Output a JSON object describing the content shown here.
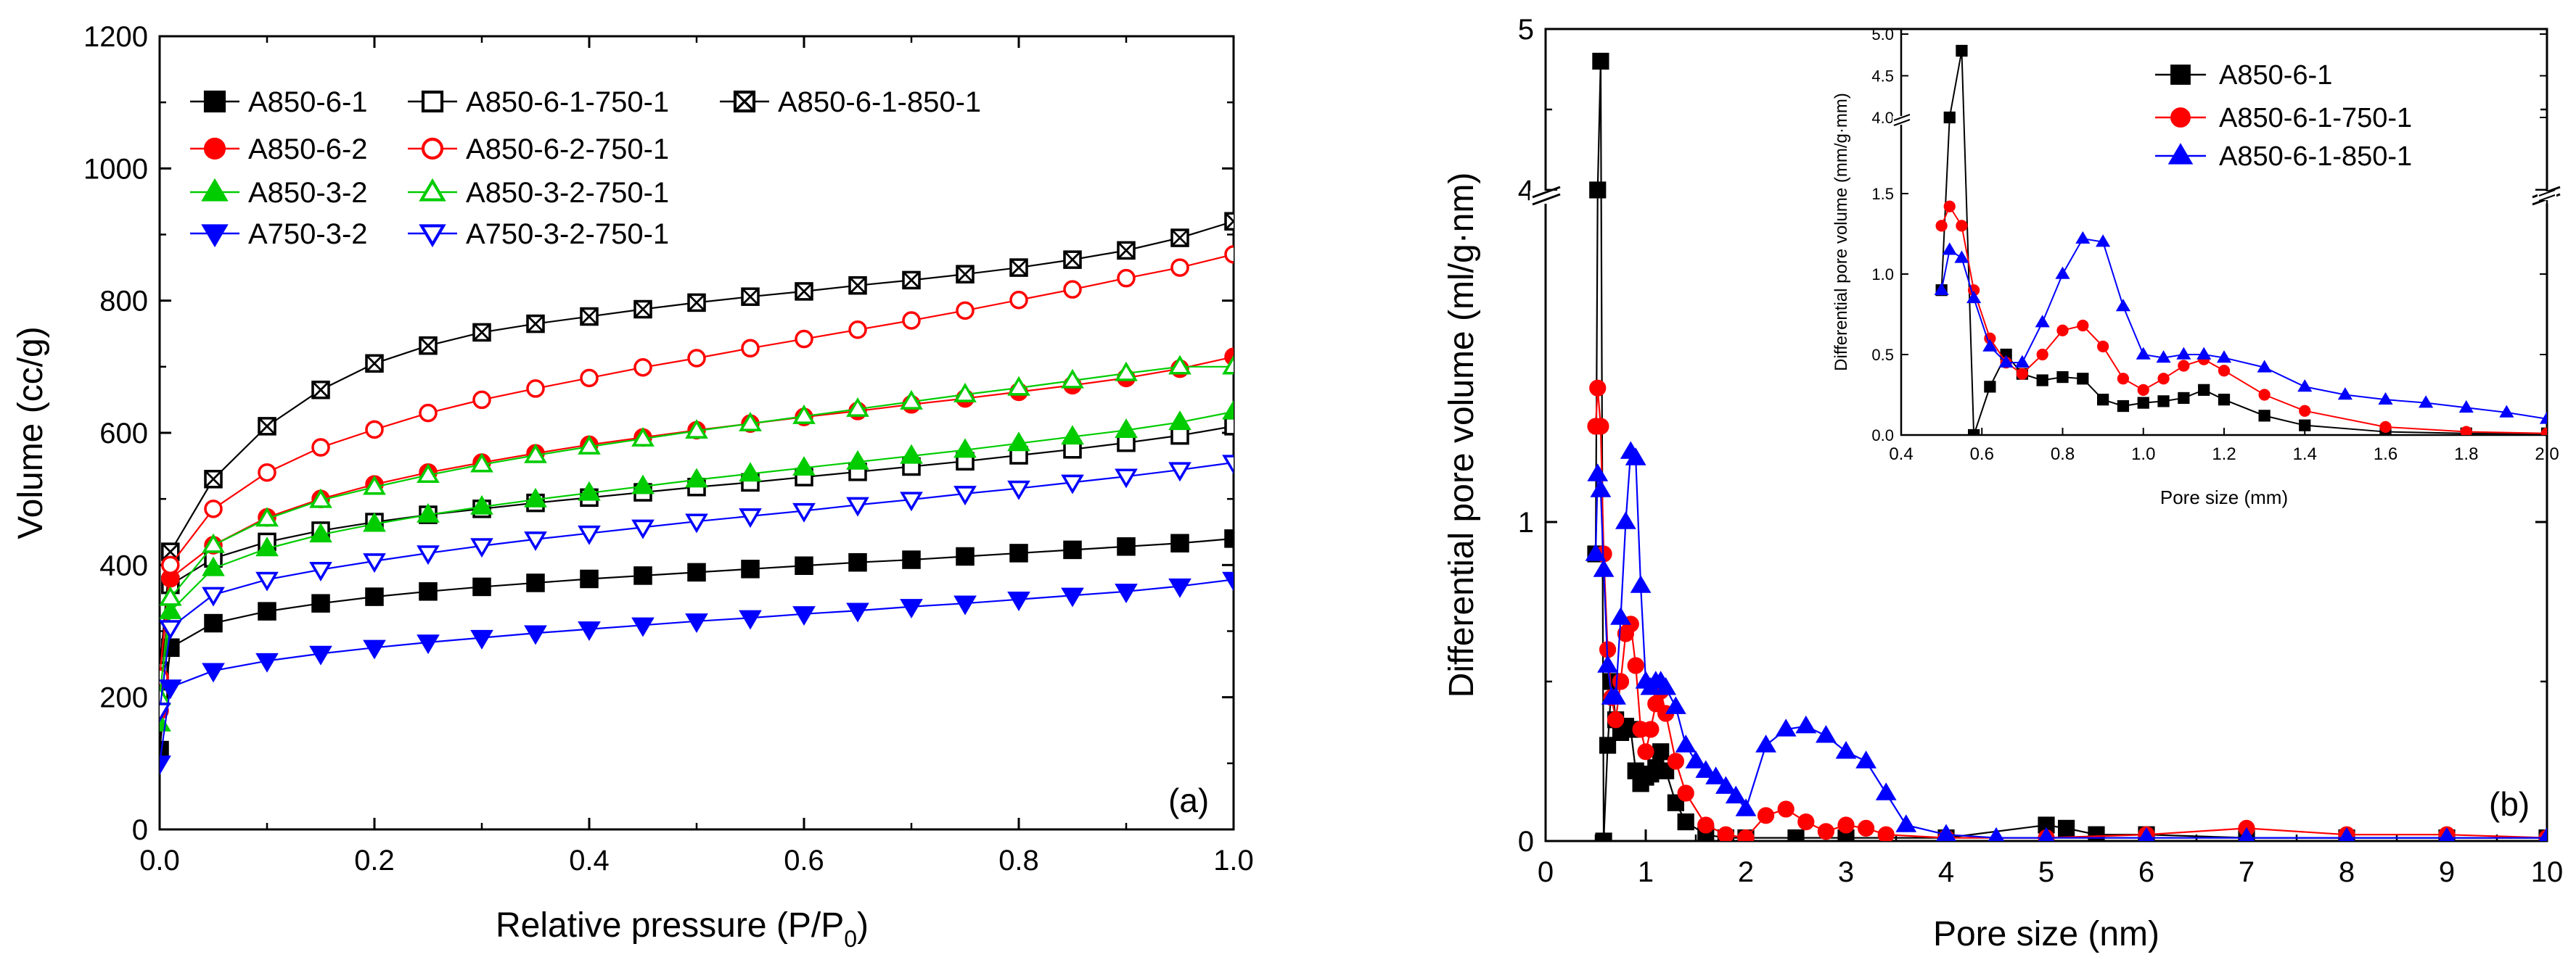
{
  "chart_data": [
    {
      "type": "line",
      "panel_label": "(a)",
      "xlabel": "Relative pressure (P/P",
      "xlabel_sub": "0",
      "xlabel_end": ")",
      "ylabel": "Volume (cc/g)",
      "xlim": [
        0,
        1.0
      ],
      "ylim": [
        0,
        1200
      ],
      "xticks": [
        0.0,
        0.2,
        0.4,
        0.6,
        0.8,
        1.0
      ],
      "xtick_labels": [
        "0.0",
        "0.2",
        "0.4",
        "0.6",
        "0.8",
        "1.0"
      ],
      "yticks": [
        0,
        200,
        400,
        600,
        800,
        1000,
        1200
      ],
      "ytick_labels": [
        "0",
        "200",
        "400",
        "600",
        "800",
        "1000",
        "1200"
      ],
      "legend_position": "top-left",
      "x": [
        0.0,
        0.01,
        0.05,
        0.1,
        0.15,
        0.2,
        0.25,
        0.3,
        0.35,
        0.4,
        0.45,
        0.5,
        0.55,
        0.6,
        0.65,
        0.7,
        0.75,
        0.8,
        0.85,
        0.9,
        0.95,
        1.0
      ],
      "series": [
        {
          "name": "A850-6-1",
          "color": "#000000",
          "marker": "square",
          "fill": "solid",
          "values": [
            120,
            275,
            312,
            330,
            342,
            352,
            360,
            367,
            373,
            379,
            384,
            389,
            394,
            399,
            404,
            408,
            413,
            418,
            423,
            428,
            433,
            440
          ]
        },
        {
          "name": "A850-6-1-750-1",
          "color": "#000000",
          "marker": "square",
          "fill": "open",
          "values": [
            200,
            370,
            410,
            435,
            452,
            465,
            476,
            485,
            494,
            502,
            510,
            518,
            525,
            533,
            541,
            549,
            557,
            566,
            575,
            585,
            596,
            610
          ]
        },
        {
          "name": "A850-6-1-850-1",
          "color": "#000000",
          "marker": "square",
          "fill": "cross",
          "values": [
            240,
            420,
            530,
            610,
            665,
            705,
            732,
            752,
            765,
            776,
            787,
            797,
            806,
            814,
            823,
            831,
            840,
            850,
            862,
            876,
            895,
            920
          ]
        },
        {
          "name": "A850-6-2",
          "color": "#ff0000",
          "marker": "circle",
          "fill": "solid",
          "values": [
            180,
            380,
            430,
            472,
            500,
            522,
            540,
            555,
            569,
            582,
            593,
            604,
            614,
            624,
            633,
            643,
            652,
            662,
            672,
            683,
            697,
            715
          ]
        },
        {
          "name": "A850-6-2-750-1",
          "color": "#ff0000",
          "marker": "circle",
          "fill": "open",
          "values": [
            230,
            400,
            485,
            540,
            578,
            605,
            630,
            650,
            667,
            683,
            699,
            713,
            728,
            742,
            756,
            770,
            785,
            801,
            817,
            834,
            850,
            870
          ]
        },
        {
          "name": "A850-3-2",
          "color": "#00cc00",
          "marker": "triangle-up",
          "fill": "solid",
          "values": [
            160,
            330,
            395,
            425,
            446,
            462,
            476,
            488,
            499,
            509,
            519,
            529,
            538,
            547,
            556,
            565,
            574,
            584,
            594,
            604,
            616,
            632
          ]
        },
        {
          "name": "A850-3-2-750-1",
          "color": "#00cc00",
          "marker": "triangle-up",
          "fill": "open",
          "values": [
            200,
            350,
            430,
            470,
            498,
            518,
            536,
            552,
            566,
            579,
            591,
            603,
            614,
            625,
            636,
            647,
            658,
            668,
            679,
            690,
            700,
            700
          ]
        },
        {
          "name": "A750-3-2",
          "color": "#0000ff",
          "marker": "triangle-down",
          "fill": "solid",
          "values": [
            100,
            215,
            240,
            255,
            266,
            275,
            283,
            290,
            297,
            303,
            309,
            315,
            320,
            326,
            331,
            337,
            342,
            348,
            354,
            360,
            368,
            378
          ]
        },
        {
          "name": "A750-3-2-750-1",
          "color": "#0000ff",
          "marker": "triangle-down",
          "fill": "open",
          "values": [
            180,
            305,
            355,
            378,
            393,
            406,
            418,
            429,
            439,
            448,
            457,
            466,
            474,
            482,
            491,
            499,
            508,
            516,
            525,
            534,
            544,
            555
          ]
        }
      ]
    },
    {
      "type": "line",
      "panel_label": "(b)",
      "xlabel": "Pore size (nm)",
      "ylabel": "Differential pore volume (ml/g·nm)",
      "xlim": [
        0,
        10
      ],
      "ylim": [
        0,
        5
      ],
      "axis_break": "between 1.5 and 4",
      "xticks": [
        0,
        1,
        2,
        3,
        4,
        5,
        6,
        7,
        8,
        9,
        10
      ],
      "xtick_labels": [
        "0",
        "1",
        "2",
        "3",
        "4",
        "5",
        "6",
        "7",
        "8",
        "9",
        "10"
      ],
      "yticks": [
        0,
        1,
        4,
        5
      ],
      "ytick_labels": [
        "0",
        "1",
        "4",
        "5"
      ],
      "legend_position": "inset top-right",
      "series": [
        {
          "name": "A850-6-1",
          "color": "#000000",
          "marker": "square",
          "x": [
            0.5,
            0.52,
            0.55,
            0.58,
            0.62,
            0.66,
            0.7,
            0.75,
            0.8,
            0.85,
            0.9,
            0.95,
            1.0,
            1.05,
            1.1,
            1.15,
            1.2,
            1.3,
            1.4,
            1.6,
            1.8,
            2.0,
            2.5,
            3.0,
            4.0,
            5.0,
            5.2,
            5.5,
            6.0,
            7.0,
            8.0,
            9.0,
            10.0
          ],
          "values": [
            0.9,
            4.0,
            4.8,
            0.0,
            0.3,
            0.5,
            0.38,
            0.34,
            0.36,
            0.35,
            0.22,
            0.18,
            0.2,
            0.21,
            0.23,
            0.28,
            0.22,
            0.12,
            0.06,
            0.02,
            0.01,
            0.01,
            0.01,
            0.01,
            0.01,
            0.05,
            0.04,
            0.02,
            0.02,
            0.01,
            0.01,
            0.01,
            0.01
          ]
        },
        {
          "name": "A850-6-1-750-1",
          "color": "#ff0000",
          "marker": "circle",
          "x": [
            0.5,
            0.52,
            0.55,
            0.58,
            0.62,
            0.66,
            0.7,
            0.75,
            0.8,
            0.85,
            0.9,
            0.95,
            1.0,
            1.05,
            1.1,
            1.15,
            1.2,
            1.3,
            1.4,
            1.6,
            1.8,
            2.0,
            2.2,
            2.4,
            2.6,
            2.8,
            3.0,
            3.2,
            3.4,
            4.0,
            5.0,
            6.0,
            7.0,
            8.0,
            9.0,
            10.0
          ],
          "values": [
            1.3,
            1.42,
            1.3,
            0.9,
            0.6,
            0.45,
            0.38,
            0.5,
            0.65,
            0.68,
            0.55,
            0.35,
            0.28,
            0.35,
            0.43,
            0.47,
            0.4,
            0.25,
            0.15,
            0.05,
            0.02,
            0.01,
            0.08,
            0.1,
            0.06,
            0.03,
            0.05,
            0.04,
            0.02,
            0.01,
            0.01,
            0.02,
            0.04,
            0.02,
            0.02,
            0.01
          ]
        },
        {
          "name": "A850-6-1-850-1",
          "color": "#0000ff",
          "marker": "triangle-up",
          "x": [
            0.5,
            0.52,
            0.55,
            0.58,
            0.62,
            0.66,
            0.7,
            0.75,
            0.8,
            0.85,
            0.9,
            0.95,
            1.0,
            1.05,
            1.1,
            1.15,
            1.2,
            1.3,
            1.4,
            1.5,
            1.6,
            1.7,
            1.8,
            1.9,
            2.0,
            2.2,
            2.4,
            2.6,
            2.8,
            3.0,
            3.2,
            3.4,
            3.6,
            4.0,
            4.5,
            5.0,
            6.0,
            7.0,
            8.0,
            9.0,
            10.0
          ],
          "values": [
            0.9,
            1.15,
            1.1,
            0.85,
            0.55,
            0.45,
            0.45,
            0.7,
            1.0,
            1.22,
            1.2,
            0.8,
            0.5,
            0.48,
            0.5,
            0.5,
            0.48,
            0.42,
            0.3,
            0.25,
            0.22,
            0.2,
            0.17,
            0.14,
            0.1,
            0.3,
            0.35,
            0.36,
            0.33,
            0.28,
            0.25,
            0.15,
            0.05,
            0.02,
            0.01,
            0.01,
            0.01,
            0.01,
            0.01,
            0.01,
            0.01
          ]
        }
      ],
      "inset": {
        "xlabel": "Pore size (mm)",
        "ylabel": "Differential pore volume (mm/g·mm)",
        "xlim": [
          0.4,
          2.0
        ],
        "ylim": [
          0,
          5.0
        ],
        "axis_break": "between 1.5 and 4.0",
        "xticks": [
          0.4,
          0.6,
          0.8,
          1.0,
          1.2,
          1.4,
          1.6,
          1.8,
          2.0
        ],
        "xtick_labels": [
          "0.4",
          "0.6",
          "0.8",
          "1.0",
          "1.2",
          "1.4",
          "1.6",
          "1.8",
          "2.0"
        ],
        "yticks": [
          0.0,
          0.5,
          1.0,
          1.5,
          4.0,
          4.5,
          5.0
        ],
        "ytick_labels": [
          "0.0",
          "0.5",
          "1.0",
          "1.5",
          "4.0",
          "4.5",
          "5.0"
        ]
      }
    }
  ]
}
